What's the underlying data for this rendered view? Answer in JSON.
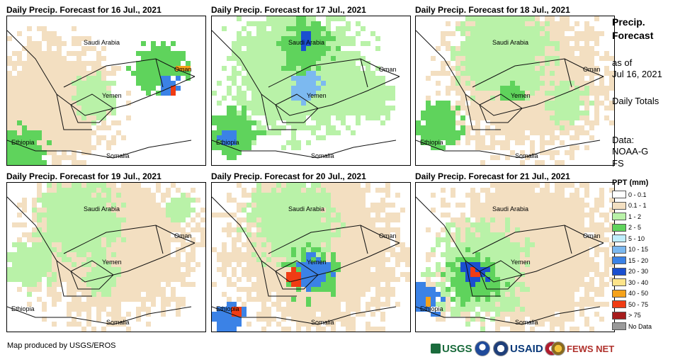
{
  "panels": [
    {
      "title": "Daily Precip. Forecast for 16 Jul., 2021"
    },
    {
      "title": "Daily Precip. Forecast for 17 Jul., 2021"
    },
    {
      "title": "Daily Precip. Forecast for 18 Jul., 2021"
    },
    {
      "title": "Daily Precip. Forecast for 19 Jul., 2021"
    },
    {
      "title": "Daily Precip. Forecast for 20 Jul., 2021"
    },
    {
      "title": "Daily Precip. Forecast for 21 Jul., 2021"
    }
  ],
  "map_labels": {
    "saudi_arabia": "Saudi Arabia",
    "oman": "Oman",
    "yemen": "Yemen",
    "ethiopia": "Ethiopia",
    "somalia": "Somalia"
  },
  "sidebar": {
    "title": "Precip. Forecast",
    "as_of_label": "as of",
    "as_of_date": "Jul 16, 2021",
    "totals_label": "Daily Totals",
    "data_label": "Data:",
    "data_source": "NOAA-GFS"
  },
  "legend": {
    "title": "PPT (mm)",
    "items": [
      {
        "label": "0 - 0.1",
        "color": "#ffffff"
      },
      {
        "label": "0.1 - 1",
        "color": "#f3dfc1"
      },
      {
        "label": "1 - 2",
        "color": "#b9f2a8"
      },
      {
        "label": "2 - 5",
        "color": "#5fd35c"
      },
      {
        "label": "5 - 10",
        "color": "#bfeefc"
      },
      {
        "label": "10 - 15",
        "color": "#7cb9f0"
      },
      {
        "label": "15 - 20",
        "color": "#3b82e6"
      },
      {
        "label": "20 - 30",
        "color": "#1a4fd0"
      },
      {
        "label": "30 - 40",
        "color": "#fde48a"
      },
      {
        "label": "40 - 50",
        "color": "#f5a21b"
      },
      {
        "label": "50 - 75",
        "color": "#f03c14"
      },
      {
        "label": "> 75",
        "color": "#a61c1c"
      },
      {
        "label": "No Data",
        "color": "#9a9a9a"
      }
    ]
  },
  "credit": "Map produced by USGS/EROS",
  "logos": {
    "usgs": "USGS",
    "usaid": "USAID",
    "fews": "FEWS NET"
  }
}
